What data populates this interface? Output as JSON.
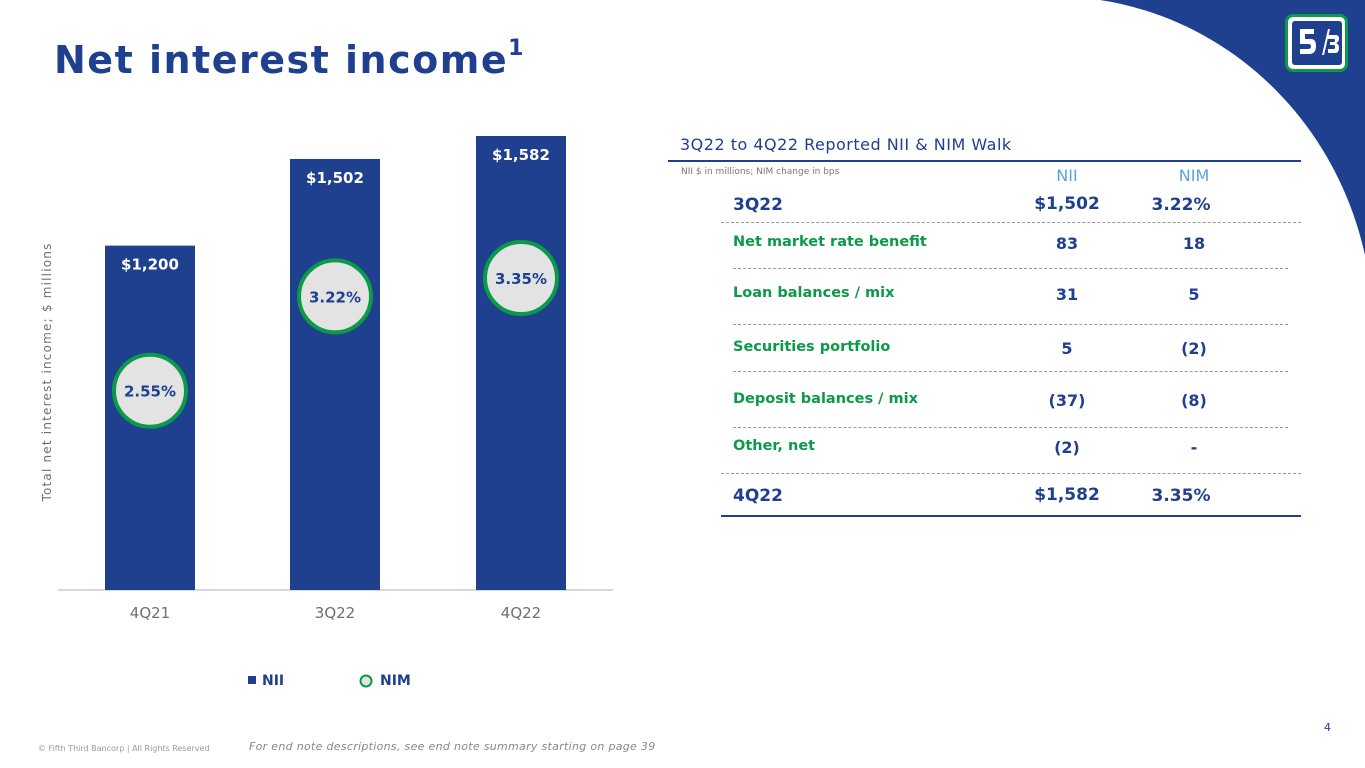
{
  "slide": {
    "title": "Net interest income",
    "title_superscript": "1",
    "page_number": "4",
    "copyright": "© Fifth Third Bancorp | All Rights Reserved",
    "endnote": "For end note descriptions, see end note summary starting on page 39"
  },
  "colors": {
    "brand_blue": "#1f3f8f",
    "brand_green": "#0b9a48",
    "light_blue": "#5aa4e0",
    "bubble_fill": "#e3e3e3"
  },
  "chart_data": {
    "type": "bar",
    "ylabel": "Total net interest income; $ millions",
    "categories": [
      "4Q21",
      "3Q22",
      "4Q22"
    ],
    "series": [
      {
        "name": "NII",
        "values": [
          1200,
          1502,
          1582
        ],
        "labels": [
          "$1,200",
          "$1,502",
          "$1,582"
        ]
      },
      {
        "name": "NIM",
        "values": [
          2.55,
          3.22,
          3.35
        ],
        "labels": [
          "2.55%",
          "3.22%",
          "3.35%"
        ]
      }
    ],
    "ylim": [
      0,
      1582
    ],
    "legend": [
      {
        "name": "NII",
        "marker": "square"
      },
      {
        "name": "NIM",
        "marker": "circle"
      }
    ],
    "legend_position": "bottom"
  },
  "walk": {
    "title": "3Q22 to 4Q22 Reported NII & NIM Walk",
    "note": "NII $ in millions; NIM change in bps",
    "col_nii": "NII",
    "col_nim": "NIM",
    "start": {
      "label": "3Q22",
      "nii": "$1,502",
      "nim": "3.22%"
    },
    "rows": [
      {
        "label": "Net market rate benefit",
        "nii": "83",
        "nim": "18"
      },
      {
        "label": "Loan balances / mix",
        "nii": "31",
        "nim": "5"
      },
      {
        "label": "Securities portfolio",
        "nii": "5",
        "nim": "(2)"
      },
      {
        "label": "Deposit balances / mix",
        "nii": "(37)",
        "nim": "(8)"
      },
      {
        "label": "Other, net",
        "nii": "(2)",
        "nim": "-"
      }
    ],
    "end": {
      "label": "4Q22",
      "nii": "$1,582",
      "nim": "3.35%"
    }
  }
}
